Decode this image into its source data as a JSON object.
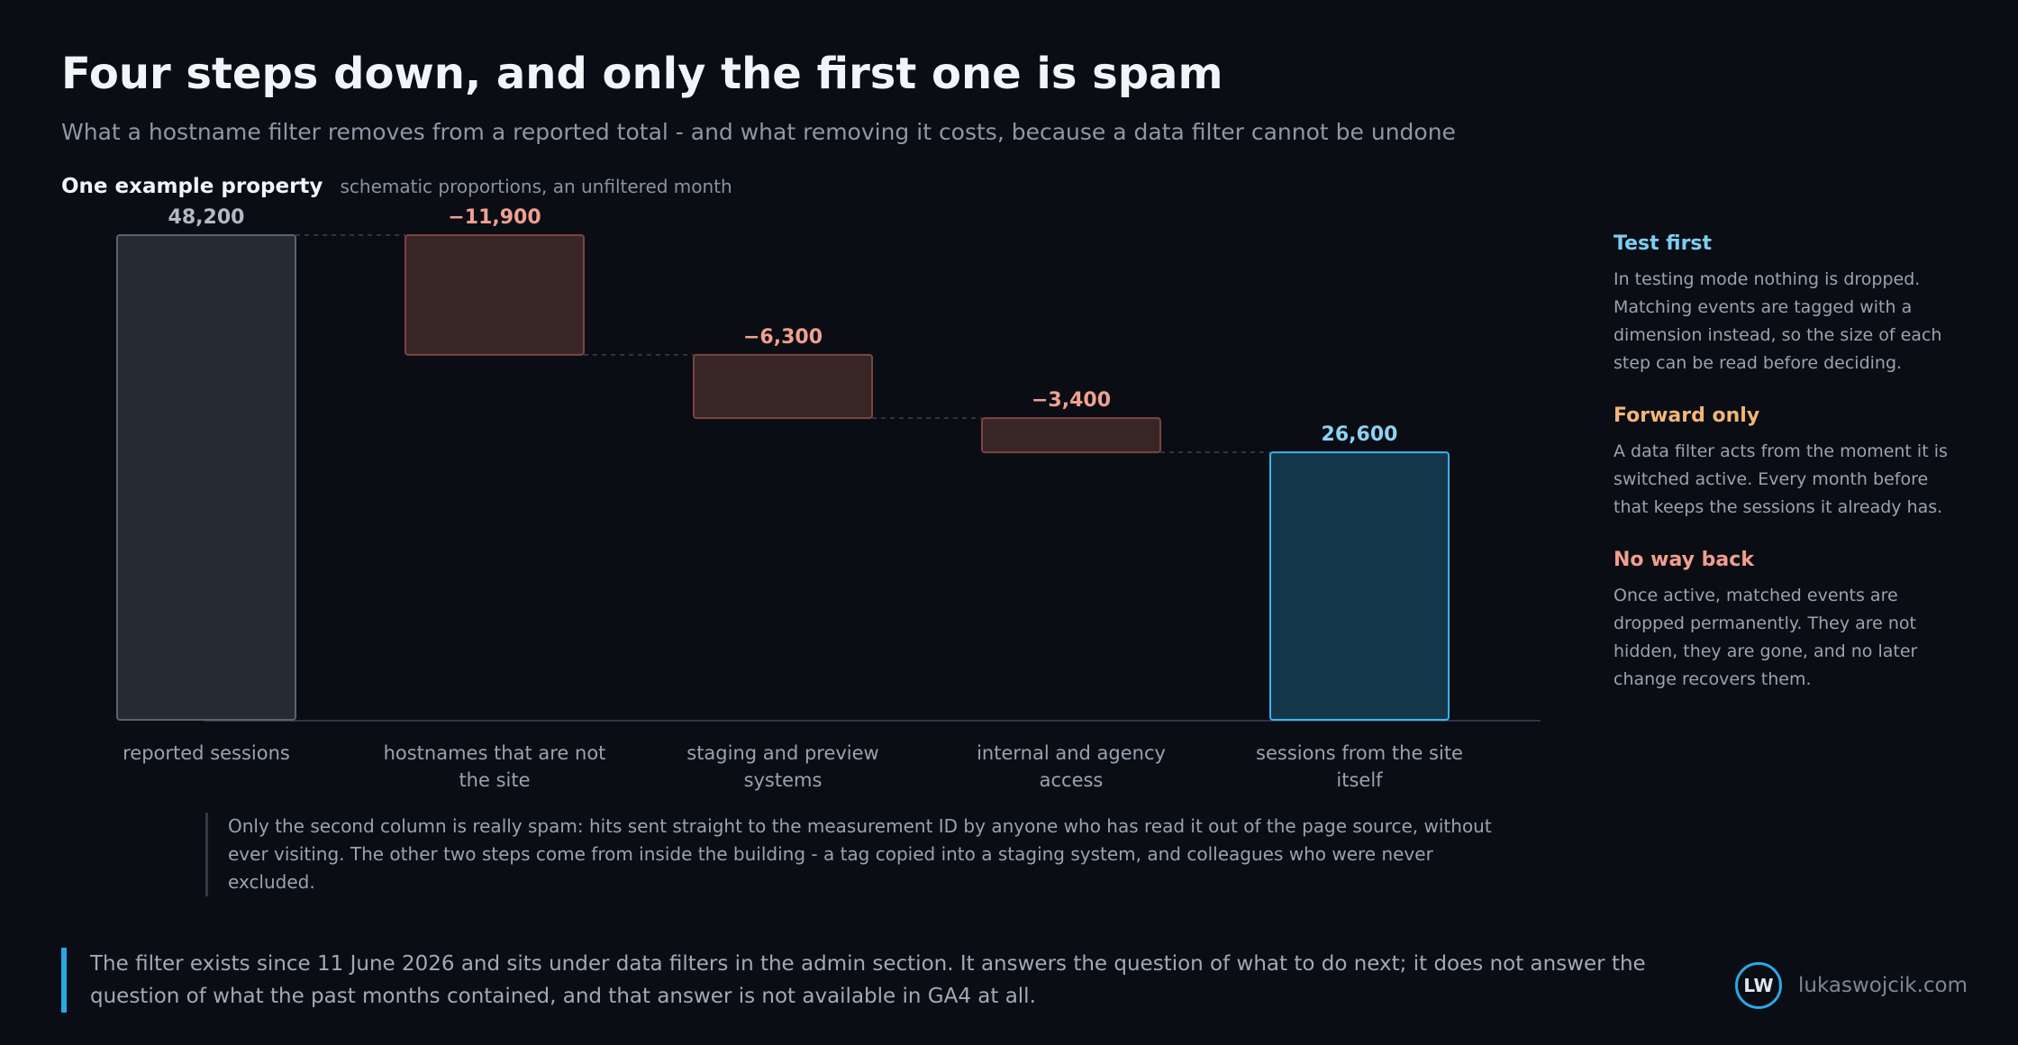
{
  "header": {
    "title": "Four steps down, and only the first one is spam",
    "subtitle": "What a hostname filter removes from a reported total - and what removing it costs, because a data filter cannot be undone"
  },
  "section": {
    "label": "One example property",
    "note": "schematic proportions, an unfiltered month"
  },
  "chart_data": {
    "type": "bar",
    "subtype": "waterfall",
    "categories": [
      "reported sessions",
      "hostnames that are not the site",
      "staging and preview systems",
      "internal and agency access",
      "sessions from the site itself"
    ],
    "values": [
      48200,
      -11900,
      -6300,
      -3400,
      26600
    ],
    "value_labels": [
      "48,200",
      "−11,900",
      "−6,300",
      "−3,400",
      "26,600"
    ],
    "bar_kinds": [
      "total",
      "decrease",
      "decrease",
      "decrease",
      "result"
    ],
    "ylim": [
      0,
      48200
    ],
    "grid": false,
    "connectors": true,
    "colors": {
      "total_fill": "#262b33",
      "total_stroke": "#5a6272",
      "total_label": "#b3bac6",
      "decrease_fill": "#382627",
      "decrease_stroke": "#7d4440",
      "decrease_label": "#f0a090",
      "result_fill": "#14364a",
      "result_stroke": "#3cb4ec",
      "result_label": "#8cd2f4"
    }
  },
  "annotation": "Only the second column is really spam: hits sent straight to the measurement ID by anyone who has read it out of the page source, without ever visiting. The other two steps come from inside the building - a tag copied into a staging system, and colleagues who were never excluded.",
  "sidebar": [
    {
      "title": "Test first",
      "color": "#7dcdf2",
      "text": "In testing mode nothing is dropped. Matching events are tagged with a dimension instead, so the size of each step can be read before deciding."
    },
    {
      "title": "Forward only",
      "color": "#f2b677",
      "text": "A data filter acts from the moment it is switched active. Every month before that keeps the sessions it already has."
    },
    {
      "title": "No way back",
      "color": "#f29e8f",
      "text": "Once active, matched events are dropped permanently. They are not hidden, they are gone, and no later change recovers them."
    }
  ],
  "footer": {
    "text": "The filter exists since 11 June 2026 and sits under data filters in the admin section. It answers the question of what to do next; it does not answer the question of what the past months contained, and that answer is not available in GA4 at all.",
    "brand_initials": "LW",
    "brand_name": "lukaswojcik.com"
  }
}
